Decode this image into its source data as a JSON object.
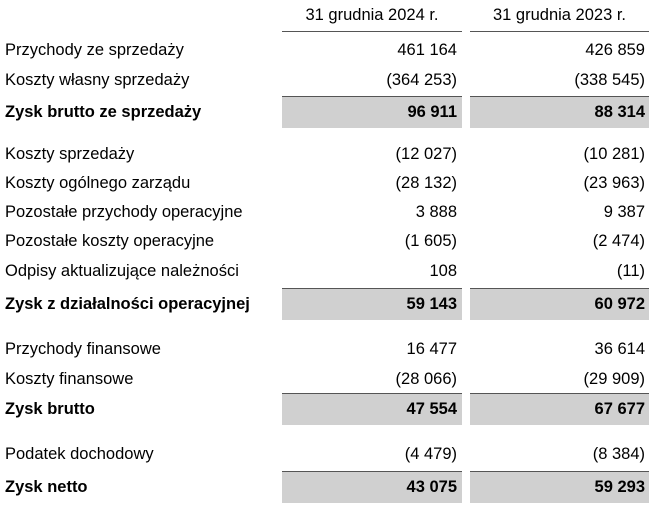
{
  "table": {
    "columns": [
      "31 grudnia 2024 r.",
      "31 grudnia 2023 r."
    ],
    "rows": [
      {
        "label": "Przychody ze sprzedaży",
        "values": [
          "461 164",
          "426 859"
        ]
      },
      {
        "label": "Koszty własny sprzedaży",
        "values": [
          "(364 253)",
          "(338 545)"
        ]
      },
      {
        "label": "Zysk brutto ze sprzedaży",
        "values": [
          "96 911",
          "88 314"
        ],
        "total": true
      },
      {
        "label": "Koszty sprzedaży",
        "values": [
          "(12 027)",
          "(10 281)"
        ]
      },
      {
        "label": "Koszty ogólnego zarządu",
        "values": [
          "(28 132)",
          "(23 963)"
        ]
      },
      {
        "label": "Pozostałe przychody operacyjne",
        "values": [
          "3 888",
          "9 387"
        ]
      },
      {
        "label": "Pozostałe koszty operacyjne",
        "values": [
          "(1 605)",
          "(2 474)"
        ]
      },
      {
        "label": "Odpisy aktualizujące należności",
        "values": [
          "108",
          "(11)"
        ]
      },
      {
        "label": "Zysk z działalności operacyjnej",
        "values": [
          "59 143",
          "60 972"
        ],
        "total": true
      },
      {
        "label": "Przychody finansowe",
        "values": [
          "16 477",
          "36 614"
        ]
      },
      {
        "label": "Koszty finansowe",
        "values": [
          "(28 066)",
          "(29 909)"
        ]
      },
      {
        "label": "Zysk brutto",
        "values": [
          "47 554",
          "67 677"
        ],
        "total": true
      },
      {
        "label": "Podatek dochodowy",
        "values": [
          "(4 479)",
          "(8 384)"
        ]
      },
      {
        "label": "Zysk netto",
        "values": [
          "43 075",
          "59 293"
        ],
        "total": true
      }
    ]
  }
}
